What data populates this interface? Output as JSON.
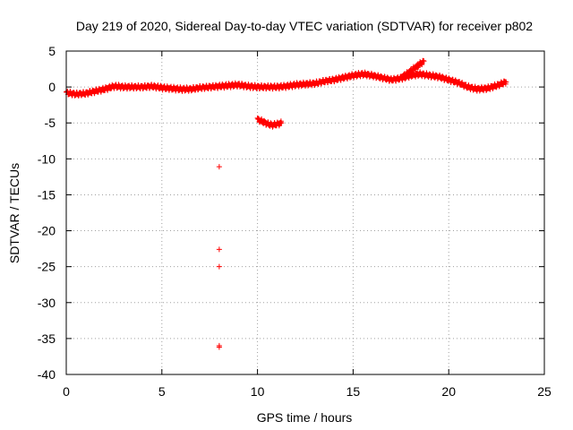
{
  "chart_data": {
    "type": "scatter",
    "title": "Day 219 of 2020, Sidereal Day-to-day VTEC variation (SDTVAR) for receiver p802",
    "xlabel": "GPS time / hours",
    "ylabel": "SDTVAR / TECUs",
    "xlim": [
      0,
      25
    ],
    "ylim": [
      -40,
      5
    ],
    "x_ticks": [
      0,
      5,
      10,
      15,
      20,
      25
    ],
    "y_ticks": [
      5,
      0,
      -5,
      -10,
      -15,
      -20,
      -25,
      -30,
      -35,
      -40
    ],
    "x_tick_labels": [
      "0",
      "5",
      "10",
      "15",
      "20",
      "25"
    ],
    "y_tick_labels": [
      "5",
      "0",
      "-5",
      "-10",
      "-15",
      "-20",
      "-25",
      "-30",
      "-35",
      "-40"
    ],
    "grid": true,
    "marker": "+",
    "color": "#ff0000",
    "series": [
      {
        "name": "main-trace",
        "points": [
          [
            0.0,
            -0.8
          ],
          [
            0.5,
            -1.0
          ],
          [
            1.0,
            -0.9
          ],
          [
            1.5,
            -0.6
          ],
          [
            2.0,
            -0.3
          ],
          [
            2.5,
            0.1
          ],
          [
            3.0,
            0.0
          ],
          [
            3.5,
            0.0
          ],
          [
            4.0,
            0.0
          ],
          [
            4.5,
            0.1
          ],
          [
            5.0,
            -0.1
          ],
          [
            5.5,
            -0.2
          ],
          [
            6.0,
            -0.3
          ],
          [
            6.5,
            -0.3
          ],
          [
            7.0,
            -0.1
          ],
          [
            7.5,
            0.0
          ],
          [
            8.0,
            0.1
          ],
          [
            8.5,
            0.2
          ],
          [
            9.0,
            0.3
          ],
          [
            9.5,
            0.1
          ],
          [
            10.0,
            0.0
          ],
          [
            10.5,
            0.0
          ],
          [
            11.0,
            0.0
          ],
          [
            11.5,
            0.1
          ],
          [
            12.0,
            0.3
          ],
          [
            12.5,
            0.4
          ],
          [
            13.0,
            0.5
          ],
          [
            13.5,
            0.8
          ],
          [
            14.0,
            1.0
          ],
          [
            14.5,
            1.3
          ],
          [
            15.0,
            1.6
          ],
          [
            15.5,
            1.8
          ],
          [
            16.0,
            1.6
          ],
          [
            16.5,
            1.3
          ],
          [
            17.0,
            1.0
          ],
          [
            17.5,
            1.2
          ],
          [
            18.0,
            1.6
          ],
          [
            18.5,
            1.8
          ],
          [
            19.0,
            1.6
          ],
          [
            19.5,
            1.4
          ],
          [
            20.0,
            1.0
          ],
          [
            20.5,
            0.6
          ],
          [
            21.0,
            0.0
          ],
          [
            21.5,
            -0.3
          ],
          [
            22.0,
            -0.2
          ],
          [
            22.5,
            0.2
          ],
          [
            23.0,
            0.7
          ]
        ]
      },
      {
        "name": "dip-segment",
        "points": [
          [
            10.0,
            -4.5
          ],
          [
            10.25,
            -4.8
          ],
          [
            10.5,
            -5.1
          ],
          [
            10.75,
            -5.3
          ],
          [
            11.0,
            -5.2
          ],
          [
            11.25,
            -5.0
          ]
        ]
      },
      {
        "name": "spike",
        "points": [
          [
            17.5,
            1.3
          ],
          [
            17.8,
            1.8
          ],
          [
            18.1,
            2.4
          ],
          [
            18.4,
            3.0
          ],
          [
            18.7,
            3.6
          ]
        ]
      },
      {
        "name": "outliers",
        "points": [
          [
            8.0,
            -11.1
          ],
          [
            8.0,
            -22.6
          ],
          [
            8.0,
            -25.0
          ],
          [
            8.0,
            -36.0
          ],
          [
            8.0,
            -36.2
          ]
        ]
      }
    ]
  }
}
